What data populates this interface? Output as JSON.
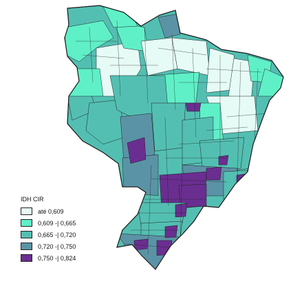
{
  "legend": {
    "title": "IDH CIR",
    "classes": [
      {
        "label": "até 0,609",
        "color": "#e6fbf6"
      },
      {
        "label": "0,609 -| 0,665",
        "color": "#5ff0c8"
      },
      {
        "label": "0,665 -| 0,720",
        "color": "#53bfb2"
      },
      {
        "label": "0,720 -| 0,750",
        "color": "#5b93a6"
      },
      {
        "label": "0,750 -| 0,824",
        "color": "#6a2e90"
      }
    ]
  },
  "colors": {
    "border": "#1f1f1f",
    "background": "#ffffff"
  }
}
